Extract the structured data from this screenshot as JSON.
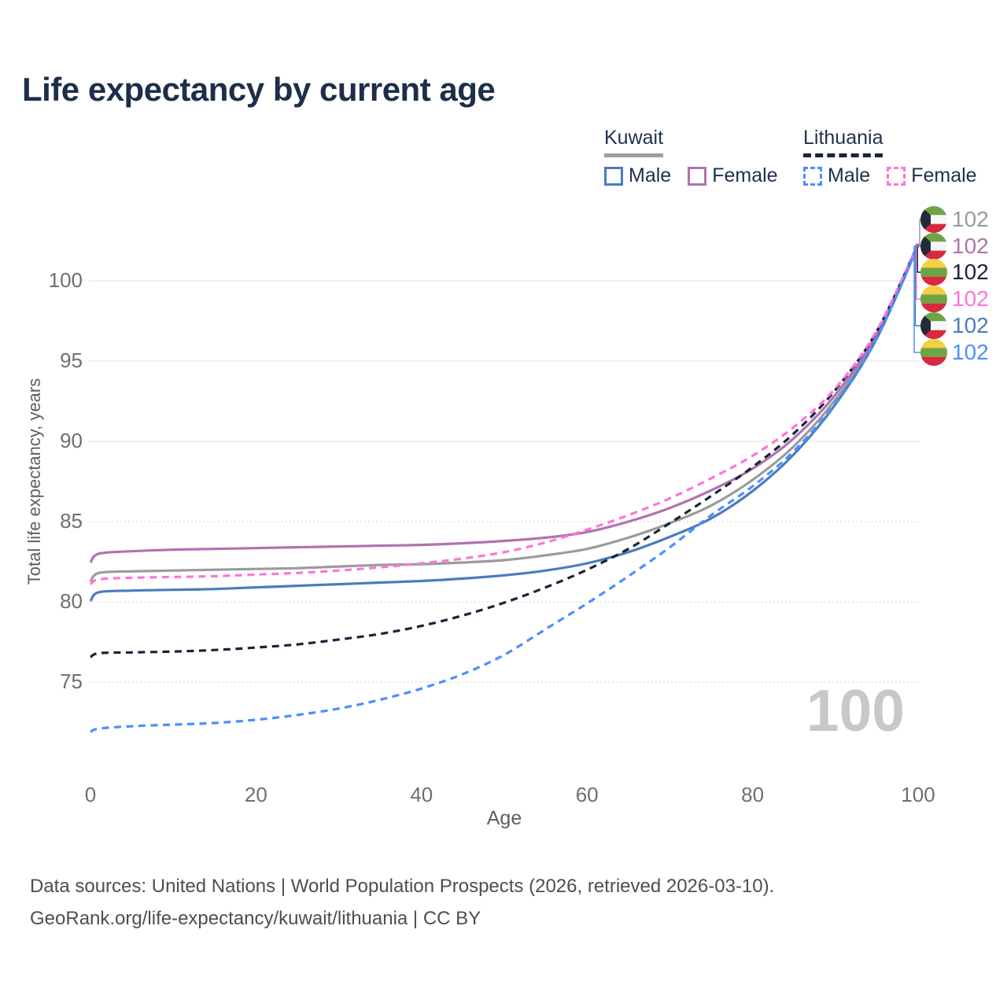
{
  "title": "Life expectancy by current age",
  "legend": {
    "groups": [
      {
        "country": "Kuwait",
        "line_style": "solid",
        "line_color": "#9e9e9e",
        "items": [
          {
            "label": "Male",
            "color": "#4a7cbe",
            "dashed": false
          },
          {
            "label": "Female",
            "color": "#b073ae",
            "dashed": false
          }
        ]
      },
      {
        "country": "Lithuania",
        "line_style": "dashed",
        "line_color": "#1a2438",
        "items": [
          {
            "label": "Male",
            "color": "#4a90fe",
            "dashed": true
          },
          {
            "label": "Female",
            "color": "#ff74da",
            "dashed": true
          }
        ]
      }
    ]
  },
  "axes": {
    "x_title": "Age",
    "y_title": "Total life expectancy, years",
    "x_ticks": [
      "0",
      "20",
      "40",
      "60",
      "80",
      "100"
    ],
    "y_ticks": [
      "75",
      "80",
      "85",
      "90",
      "95",
      "100"
    ]
  },
  "watermark": "100",
  "footer": {
    "line1": "Data sources: United Nations | World Population Prospects (2026, retrieved 2026-03-10).",
    "line2": "GeoRank.org/life-expectancy/kuwait/lithuania | CC BY"
  },
  "colors": {
    "title_text": "#1d2e49",
    "tick_text": "#6f6f6f",
    "grid_solid": "#e8e8e8",
    "grid_dotted": "#cfcfcf",
    "watermark": "#c8c8c8"
  },
  "chart_data": {
    "type": "line",
    "title": "Life expectancy by current age",
    "xlabel": "Age",
    "ylabel": "Total life expectancy, years",
    "xlim": [
      0,
      100
    ],
    "ylim": [
      71,
      103
    ],
    "grid": "horizontal",
    "legend_position": "top-right",
    "series": [
      {
        "name": "Kuwait",
        "country": "Kuwait",
        "sex": "both",
        "flag": "kuwait",
        "color": "#9b9b9b",
        "dashed": false,
        "end_label": "102",
        "end_value": 102.2,
        "points": [
          [
            0,
            81.25
          ],
          [
            1,
            81.8
          ],
          [
            5,
            81.9
          ],
          [
            10,
            81.95
          ],
          [
            15,
            82.0
          ],
          [
            20,
            82.05
          ],
          [
            25,
            82.1
          ],
          [
            30,
            82.2
          ],
          [
            35,
            82.3
          ],
          [
            40,
            82.35
          ],
          [
            45,
            82.45
          ],
          [
            50,
            82.6
          ],
          [
            55,
            82.9
          ],
          [
            60,
            83.3
          ],
          [
            65,
            84.0
          ],
          [
            70,
            84.9
          ],
          [
            75,
            86.0
          ],
          [
            80,
            87.6
          ],
          [
            85,
            89.7
          ],
          [
            90,
            92.6
          ],
          [
            95,
            96.5
          ],
          [
            100,
            102.2
          ]
        ]
      },
      {
        "name": "Kuwait Female",
        "country": "Kuwait",
        "sex": "female",
        "flag": "kuwait",
        "color": "#b073ae",
        "dashed": false,
        "end_label": "102",
        "end_value": 102.3,
        "points": [
          [
            0,
            82.45
          ],
          [
            1,
            83.0
          ],
          [
            5,
            83.15
          ],
          [
            10,
            83.25
          ],
          [
            15,
            83.3
          ],
          [
            20,
            83.35
          ],
          [
            25,
            83.4
          ],
          [
            30,
            83.45
          ],
          [
            35,
            83.5
          ],
          [
            40,
            83.55
          ],
          [
            45,
            83.65
          ],
          [
            50,
            83.8
          ],
          [
            55,
            84.0
          ],
          [
            60,
            84.35
          ],
          [
            65,
            85.0
          ],
          [
            70,
            85.85
          ],
          [
            75,
            86.95
          ],
          [
            80,
            88.3
          ],
          [
            85,
            90.2
          ],
          [
            90,
            92.9
          ],
          [
            95,
            96.7
          ],
          [
            100,
            102.3
          ]
        ]
      },
      {
        "name": "Lithuania",
        "country": "Lithuania",
        "sex": "both",
        "flag": "lithuania",
        "color": "#1a2438",
        "dashed": true,
        "end_label": "102",
        "end_value": 102.25,
        "points": [
          [
            0,
            76.55
          ],
          [
            1,
            76.8
          ],
          [
            5,
            76.85
          ],
          [
            10,
            76.9
          ],
          [
            15,
            77.0
          ],
          [
            20,
            77.15
          ],
          [
            25,
            77.35
          ],
          [
            30,
            77.65
          ],
          [
            35,
            78.0
          ],
          [
            40,
            78.5
          ],
          [
            45,
            79.15
          ],
          [
            50,
            79.95
          ],
          [
            55,
            80.9
          ],
          [
            60,
            82.0
          ],
          [
            65,
            83.3
          ],
          [
            70,
            84.9
          ],
          [
            75,
            86.6
          ],
          [
            80,
            88.4
          ],
          [
            85,
            90.5
          ],
          [
            90,
            93.2
          ],
          [
            95,
            96.85
          ],
          [
            100,
            102.25
          ]
        ]
      },
      {
        "name": "Lithuania Female",
        "country": "Lithuania",
        "sex": "female",
        "flag": "lithuania",
        "color": "#ff74da",
        "dashed": true,
        "end_label": "102",
        "end_value": 102.3,
        "points": [
          [
            0,
            81.1
          ],
          [
            1,
            81.4
          ],
          [
            5,
            81.5
          ],
          [
            10,
            81.55
          ],
          [
            15,
            81.6
          ],
          [
            20,
            81.7
          ],
          [
            25,
            81.8
          ],
          [
            30,
            81.95
          ],
          [
            35,
            82.15
          ],
          [
            40,
            82.4
          ],
          [
            45,
            82.7
          ],
          [
            50,
            83.1
          ],
          [
            55,
            83.7
          ],
          [
            60,
            84.5
          ],
          [
            65,
            85.4
          ],
          [
            70,
            86.45
          ],
          [
            75,
            87.7
          ],
          [
            80,
            89.1
          ],
          [
            85,
            90.9
          ],
          [
            90,
            93.3
          ],
          [
            95,
            96.9
          ],
          [
            100,
            102.3
          ]
        ]
      },
      {
        "name": "Kuwait Male",
        "country": "Kuwait",
        "sex": "male",
        "flag": "kuwait",
        "color": "#4a7cbe",
        "dashed": false,
        "end_label": "102",
        "end_value": 102.2,
        "points": [
          [
            0,
            80.05
          ],
          [
            1,
            80.6
          ],
          [
            5,
            80.7
          ],
          [
            10,
            80.75
          ],
          [
            15,
            80.8
          ],
          [
            20,
            80.9
          ],
          [
            25,
            81.0
          ],
          [
            30,
            81.1
          ],
          [
            35,
            81.2
          ],
          [
            40,
            81.3
          ],
          [
            45,
            81.45
          ],
          [
            50,
            81.65
          ],
          [
            55,
            81.95
          ],
          [
            60,
            82.4
          ],
          [
            65,
            83.1
          ],
          [
            70,
            84.05
          ],
          [
            75,
            85.2
          ],
          [
            80,
            86.9
          ],
          [
            85,
            89.2
          ],
          [
            90,
            92.3
          ],
          [
            95,
            96.4
          ],
          [
            100,
            102.2
          ]
        ]
      },
      {
        "name": "Lithuania Male",
        "country": "Lithuania",
        "sex": "male",
        "flag": "lithuania",
        "color": "#4a90fe",
        "dashed": true,
        "end_label": "102",
        "end_value": 102.15,
        "points": [
          [
            0,
            71.9
          ],
          [
            1,
            72.1
          ],
          [
            5,
            72.25
          ],
          [
            10,
            72.35
          ],
          [
            15,
            72.45
          ],
          [
            20,
            72.65
          ],
          [
            25,
            72.95
          ],
          [
            30,
            73.35
          ],
          [
            35,
            73.9
          ],
          [
            40,
            74.6
          ],
          [
            45,
            75.5
          ],
          [
            50,
            76.7
          ],
          [
            55,
            78.3
          ],
          [
            60,
            79.9
          ],
          [
            65,
            81.6
          ],
          [
            70,
            83.4
          ],
          [
            75,
            85.4
          ],
          [
            80,
            87.2
          ],
          [
            85,
            89.4
          ],
          [
            90,
            92.4
          ],
          [
            95,
            96.45
          ],
          [
            100,
            102.2
          ]
        ]
      }
    ]
  }
}
